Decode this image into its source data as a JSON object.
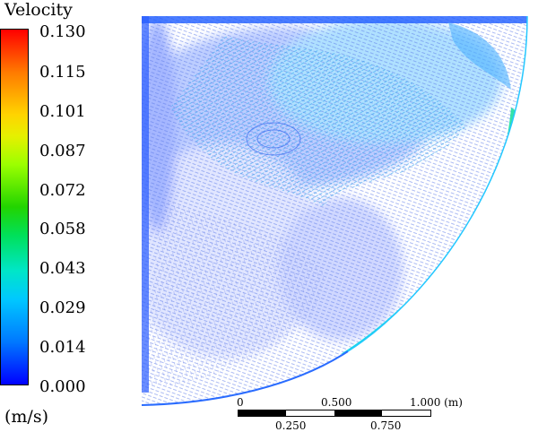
{
  "legend": {
    "title": "Velocity",
    "units": "(m/s)",
    "ticks": [
      "0.130",
      "0.115",
      "0.101",
      "0.087",
      "0.072",
      "0.058",
      "0.043",
      "0.029",
      "0.014",
      "0.000"
    ]
  },
  "scale_bar": {
    "top_labels": [
      "0",
      "0.500",
      "1.000 (m)"
    ],
    "bottom_labels": [
      "0.250",
      "0.750"
    ]
  }
}
